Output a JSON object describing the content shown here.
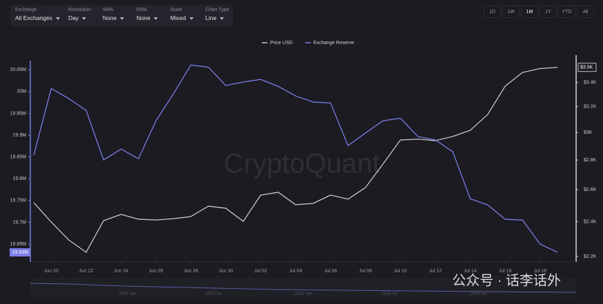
{
  "controls": [
    {
      "label": "Exchange",
      "value": "All Exchanges"
    },
    {
      "label": "Resolution",
      "value": "Day"
    },
    {
      "label": "SMA",
      "value": "None"
    },
    {
      "label": "EMA",
      "value": "None"
    },
    {
      "label": "Scale",
      "value": "Mixed"
    },
    {
      "label": "Chart Type",
      "value": "Line"
    }
  ],
  "ranges": [
    "1D",
    "1W",
    "1M",
    "1Y",
    "YTD",
    "All"
  ],
  "active_range": "1M",
  "watermark": "CryptoQuant",
  "overlay_text": "公众号 · 话李话外",
  "navigator_labels": [
    "2023 Jan",
    "2023 Jul",
    "2024 Jan",
    "2024 Jul",
    "2025 Jan"
  ],
  "chart_data": {
    "type": "line",
    "categories": [
      null,
      "Jun 20",
      null,
      "Jun 22",
      null,
      "Jun 24",
      null,
      "Jun 26",
      null,
      "Jun 28",
      null,
      "Jun 30",
      null,
      "Jul 02",
      null,
      "Jul 04",
      null,
      "Jul 06",
      null,
      "Jul 08",
      null,
      "Jul 10",
      null,
      "Jul 12",
      null,
      "Jul 14",
      null,
      "Jul 16",
      null,
      "Jul 18",
      null
    ],
    "series": [
      {
        "name": "Price USD",
        "color": "#c6c6cc",
        "axis": "y2",
        "values": [
          2517,
          2398,
          2293,
          2223,
          2406,
          2444,
          2415,
          2410,
          2418,
          2431,
          2495,
          2482,
          2402,
          2565,
          2583,
          2504,
          2512,
          2565,
          2539,
          2614,
          2772,
          2944,
          2950,
          2939,
          2970,
          3016,
          3138,
          3368,
          3486,
          3520,
          3530
        ],
        "value_labels": [
          null,
          null,
          null,
          null,
          null,
          null,
          null,
          null,
          null,
          null,
          null,
          null,
          null,
          null,
          null,
          null,
          null,
          null,
          null,
          null,
          null,
          null,
          null,
          null,
          null,
          null,
          null,
          null,
          null,
          null,
          "$3.5K"
        ]
      },
      {
        "name": "Exchange Reserve",
        "color": "#7b7ee8",
        "axis": "y",
        "values": [
          19854000,
          20007000,
          19984000,
          19957000,
          19843000,
          19868000,
          19846000,
          19933000,
          19995000,
          20061000,
          20056000,
          20014000,
          20022000,
          20028000,
          20012000,
          19990000,
          19976000,
          19974000,
          19876000,
          19905000,
          19933000,
          19939000,
          19897000,
          19889000,
          19862000,
          19754000,
          19740000,
          19707000,
          19705000,
          19650000,
          19631000
        ],
        "value_labels": [
          null,
          null,
          null,
          null,
          null,
          null,
          null,
          null,
          null,
          null,
          null,
          null,
          null,
          null,
          null,
          null,
          null,
          null,
          null,
          null,
          null,
          null,
          null,
          null,
          null,
          null,
          null,
          null,
          null,
          null,
          "19.63M"
        ]
      }
    ],
    "ylim": [
      19609000,
      20071000
    ],
    "yticks": [
      {
        "value": 19650000,
        "label": "19.65M"
      },
      {
        "value": 19700000,
        "label": "19.7M"
      },
      {
        "value": 19750000,
        "label": "19.75M"
      },
      {
        "value": 19800000,
        "label": "19.8M"
      },
      {
        "value": 19850000,
        "label": "19.85M"
      },
      {
        "value": 19900000,
        "label": "19.9M"
      },
      {
        "value": 19950000,
        "label": "19.95M"
      },
      {
        "value": 20000000,
        "label": "20M"
      },
      {
        "value": 20050000,
        "label": "20.05M"
      }
    ],
    "y2lim": [
      2170,
      3590
    ],
    "y2ticks": [
      {
        "value": 2200,
        "label": "$2.2K"
      },
      {
        "value": 2400,
        "label": "$2.4K"
      },
      {
        "value": 2600,
        "label": "$2.6K"
      },
      {
        "value": 2800,
        "label": "$2.8K"
      },
      {
        "value": 3000,
        "label": "$3K"
      },
      {
        "value": 3200,
        "label": "$3.2K"
      },
      {
        "value": 3400,
        "label": "$3.4K"
      }
    ],
    "y2log": true,
    "grid": false,
    "legend": "top"
  }
}
